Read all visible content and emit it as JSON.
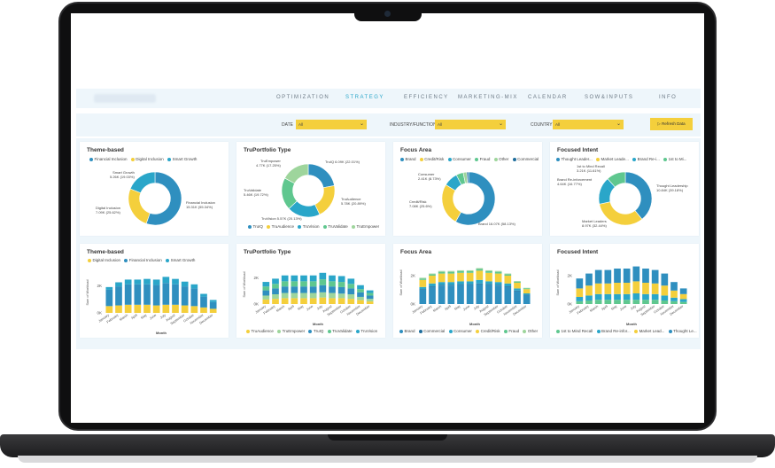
{
  "nav": {
    "items": [
      "OPTIMIZATION",
      "STRATEGY",
      "EFFICIENCY",
      "MARKETING-MIX",
      "CALENDAR",
      "SOW&INPUTS",
      "INFO"
    ],
    "active": "STRATEGY"
  },
  "filters": {
    "date_label": "DATE",
    "date_value": "All",
    "industry_label": "INDUSTRY/FUNCTION",
    "industry_value": "All",
    "country_label": "COUNTRY",
    "country_value": "All",
    "refresh_label": "Refresh Data"
  },
  "colors": {
    "teal": "#2aa6c9",
    "blue": "#2f8fbf",
    "yellow": "#f4cf3c",
    "green": "#5fc78f",
    "lightgreen": "#9ed59c",
    "darkblue": "#1f6d9c"
  },
  "cards": {
    "theme_donut": {
      "title": "Theme-based",
      "legend": [
        "Financial Inclusion",
        "Digital Inclusion",
        "Smart Growth"
      ],
      "labels": {
        "smart": [
          "Smart Growth",
          "5.26K (19.03%)"
        ],
        "digital": [
          "Digital Inclusion",
          "7.09K (25.62%)"
        ],
        "financial": [
          "Financial Inclusion",
          "15.31K (55.34%)"
        ]
      }
    },
    "truportfolio_donut": {
      "title": "TruPortfolio Type",
      "legend": [
        "TruIQ",
        "TruAudience",
        "TruVision",
        "TruValidate",
        "TruEmpower"
      ],
      "labels": {
        "empower": [
          "TruEmpower",
          "4.77K (17.25%)"
        ],
        "iq": [
          "TruIQ 6.09K (22.01%)"
        ],
        "validate": [
          "TruValidate",
          "5.46K (19.72%)"
        ],
        "audience": [
          "TruAudience",
          "5.78K (20.89%)"
        ],
        "vision": [
          "TruVision 5.57K (20.13%)"
        ]
      }
    },
    "focus_donut": {
      "title": "Focus Area",
      "legend": [
        "Brand",
        "Credit/Risk",
        "Consumer",
        "Fraud",
        "Other",
        "Commercial"
      ],
      "labels": {
        "consumer": [
          "Consumer",
          "2.41K (8.73%)"
        ],
        "credit": [
          "Credit/Risk",
          "7.08K (25.6%)"
        ],
        "brand": [
          "Brand 16.07K (58.13%)"
        ]
      }
    },
    "intent_donut": {
      "title": "Focused Intent",
      "legend": [
        "Thought Leader...",
        "Market Leade...",
        "Brand Re-i...",
        "1st to Mi..."
      ],
      "labels": {
        "recall": [
          "1st to Mind Recall",
          "3.21K (11.61%)"
        ],
        "brand": [
          "Brand Re-inforcement",
          "4.64K (16.77%)"
        ],
        "thought": [
          "Thought Leadership",
          "10.84K (39.18%)"
        ],
        "market": [
          "Market Leaders",
          "8.97K (32.44%)"
        ]
      }
    },
    "theme_bar": {
      "title": "Theme-based",
      "legend": [
        "Digital Inclusion",
        "Financial Inclusion",
        "Smart Growth"
      ],
      "ylabel": "Sum of Workload",
      "xlabel": "Month",
      "yticks": [
        "2K",
        "0K"
      ]
    },
    "truportfolio_bar": {
      "title": "TruPortfolio Type",
      "legend": [
        "TruAudience",
        "TruEmpower",
        "TruIQ",
        "TruValidate",
        "TruVision"
      ],
      "ylabel": "Sum of Workload",
      "xlabel": "Month",
      "yticks": [
        "2K",
        "0K"
      ]
    },
    "focus_bar": {
      "title": "Focus Area",
      "legend": [
        "Brand",
        "Commercial",
        "Consumer",
        "Credit/Risk",
        "Fraud",
        "Other"
      ],
      "ylabel": "Sum of Workload",
      "xlabel": "Month",
      "yticks": [
        "2K",
        "0K"
      ]
    },
    "intent_bar": {
      "title": "Focused Intent",
      "legend": [
        "1st to Mind Recall",
        "Brand Re-infor...",
        "Market Lead...",
        "Thought Le..."
      ],
      "ylabel": "Sum of Workload",
      "xlabel": "Month",
      "yticks": [
        "2K",
        "0K"
      ]
    }
  },
  "months": [
    "January",
    "February",
    "March",
    "April",
    "May",
    "June",
    "July",
    "August",
    "September",
    "October",
    "November",
    "December"
  ],
  "chart_data": [
    {
      "type": "pie",
      "title": "Theme-based",
      "categories": [
        "Financial Inclusion",
        "Digital Inclusion",
        "Smart Growth"
      ],
      "values": [
        15.31,
        7.09,
        5.26
      ],
      "colors": [
        "#2f8fbf",
        "#f4cf3c",
        "#2aa6c9"
      ]
    },
    {
      "type": "pie",
      "title": "TruPortfolio Type",
      "categories": [
        "TruIQ",
        "TruAudience",
        "TruVision",
        "TruValidate",
        "TruEmpower"
      ],
      "values": [
        6.09,
        5.78,
        5.57,
        5.46,
        4.77
      ],
      "colors": [
        "#2f8fbf",
        "#f4cf3c",
        "#2aa6c9",
        "#5fc78f",
        "#9ed59c"
      ]
    },
    {
      "type": "pie",
      "title": "Focus Area",
      "categories": [
        "Brand",
        "Credit/Risk",
        "Consumer",
        "Fraud",
        "Other",
        "Commercial"
      ],
      "values": [
        16.07,
        7.08,
        2.41,
        1.2,
        0.6,
        0.3
      ],
      "colors": [
        "#2f8fbf",
        "#f4cf3c",
        "#2aa6c9",
        "#5fc78f",
        "#9ed59c",
        "#1f6d9c"
      ]
    },
    {
      "type": "pie",
      "title": "Focused Intent",
      "categories": [
        "Thought Leadership",
        "Market Leaders",
        "Brand Re-inforcement",
        "1st to Mind Recall"
      ],
      "values": [
        10.84,
        8.97,
        4.64,
        3.21
      ],
      "colors": [
        "#2f8fbf",
        "#f4cf3c",
        "#2aa6c9",
        "#5fc78f"
      ]
    },
    {
      "type": "bar",
      "title": "Theme-based",
      "ylim": [
        0,
        3
      ],
      "stacked": true,
      "series": [
        {
          "name": "Digital Inclusion",
          "color": "#f4cf3c",
          "values": [
            0.5,
            0.55,
            0.6,
            0.6,
            0.6,
            0.55,
            0.6,
            0.6,
            0.55,
            0.5,
            0.4,
            0.3
          ]
        },
        {
          "name": "Financial Inclusion",
          "color": "#2f8fbf",
          "values": [
            1.2,
            1.4,
            1.5,
            1.5,
            1.5,
            1.5,
            1.6,
            1.5,
            1.4,
            1.3,
            0.8,
            0.5
          ]
        },
        {
          "name": "Smart Growth",
          "color": "#2aa6c9",
          "values": [
            0.2,
            0.3,
            0.35,
            0.35,
            0.4,
            0.4,
            0.45,
            0.4,
            0.35,
            0.3,
            0.2,
            0.15
          ]
        }
      ]
    },
    {
      "type": "bar",
      "title": "TruPortfolio Type",
      "ylim": [
        0,
        3
      ],
      "stacked": true,
      "series": [
        {
          "name": "TruAudience",
          "color": "#f4cf3c",
          "values": [
            0.35,
            0.4,
            0.45,
            0.45,
            0.45,
            0.45,
            0.5,
            0.45,
            0.45,
            0.4,
            0.3,
            0.2
          ]
        },
        {
          "name": "TruEmpower",
          "color": "#9ed59c",
          "values": [
            0.3,
            0.35,
            0.4,
            0.4,
            0.4,
            0.4,
            0.4,
            0.4,
            0.35,
            0.35,
            0.25,
            0.2
          ]
        },
        {
          "name": "TruIQ",
          "color": "#2f8fbf",
          "values": [
            0.4,
            0.45,
            0.5,
            0.5,
            0.5,
            0.5,
            0.55,
            0.5,
            0.5,
            0.45,
            0.35,
            0.25
          ]
        },
        {
          "name": "TruValidate",
          "color": "#5fc78f",
          "values": [
            0.3,
            0.35,
            0.4,
            0.4,
            0.4,
            0.4,
            0.45,
            0.4,
            0.4,
            0.35,
            0.25,
            0.2
          ]
        },
        {
          "name": "TruVision",
          "color": "#2aa6c9",
          "values": [
            0.35,
            0.4,
            0.45,
            0.45,
            0.45,
            0.45,
            0.5,
            0.45,
            0.45,
            0.4,
            0.3,
            0.2
          ]
        }
      ]
    },
    {
      "type": "bar",
      "title": "Focus Area",
      "ylim": [
        0,
        3
      ],
      "stacked": true,
      "series": [
        {
          "name": "Brand",
          "color": "#2f8fbf",
          "values": [
            1.0,
            1.2,
            1.3,
            1.3,
            1.35,
            1.35,
            1.4,
            1.35,
            1.3,
            1.2,
            0.9,
            0.6
          ]
        },
        {
          "name": "Commercial",
          "color": "#1f6d9c",
          "values": [
            0.05,
            0.05,
            0.05,
            0.05,
            0.05,
            0.05,
            0.05,
            0.05,
            0.05,
            0.05,
            0.05,
            0.05
          ]
        },
        {
          "name": "Consumer",
          "color": "#2aa6c9",
          "values": [
            0.15,
            0.2,
            0.2,
            0.2,
            0.2,
            0.2,
            0.25,
            0.2,
            0.2,
            0.2,
            0.15,
            0.1
          ]
        },
        {
          "name": "Credit/Risk",
          "color": "#f4cf3c",
          "values": [
            0.5,
            0.55,
            0.6,
            0.6,
            0.6,
            0.6,
            0.65,
            0.6,
            0.6,
            0.55,
            0.4,
            0.3
          ]
        },
        {
          "name": "Fraud",
          "color": "#5fc78f",
          "values": [
            0.1,
            0.1,
            0.12,
            0.12,
            0.12,
            0.12,
            0.12,
            0.12,
            0.12,
            0.1,
            0.08,
            0.06
          ]
        },
        {
          "name": "Other",
          "color": "#9ed59c",
          "values": [
            0.05,
            0.05,
            0.06,
            0.06,
            0.06,
            0.06,
            0.06,
            0.06,
            0.06,
            0.05,
            0.04,
            0.03
          ]
        }
      ]
    },
    {
      "type": "bar",
      "title": "Focused Intent",
      "ylim": [
        0,
        3
      ],
      "stacked": true,
      "series": [
        {
          "name": "1st to Mind Recall",
          "color": "#5fc78f",
          "values": [
            0.2,
            0.25,
            0.3,
            0.3,
            0.3,
            0.3,
            0.3,
            0.3,
            0.3,
            0.25,
            0.2,
            0.15
          ]
        },
        {
          "name": "Brand Re-inforcement",
          "color": "#2aa6c9",
          "values": [
            0.3,
            0.35,
            0.4,
            0.4,
            0.4,
            0.4,
            0.45,
            0.4,
            0.4,
            0.35,
            0.25,
            0.2
          ]
        },
        {
          "name": "Market Leaders",
          "color": "#f4cf3c",
          "values": [
            0.6,
            0.7,
            0.75,
            0.75,
            0.8,
            0.8,
            0.85,
            0.8,
            0.75,
            0.7,
            0.5,
            0.35
          ]
        },
        {
          "name": "Thought Leadership",
          "color": "#2f8fbf",
          "values": [
            0.7,
            0.85,
            0.95,
            0.95,
            1.0,
            1.0,
            1.05,
            1.0,
            0.95,
            0.85,
            0.6,
            0.4
          ]
        }
      ]
    }
  ]
}
